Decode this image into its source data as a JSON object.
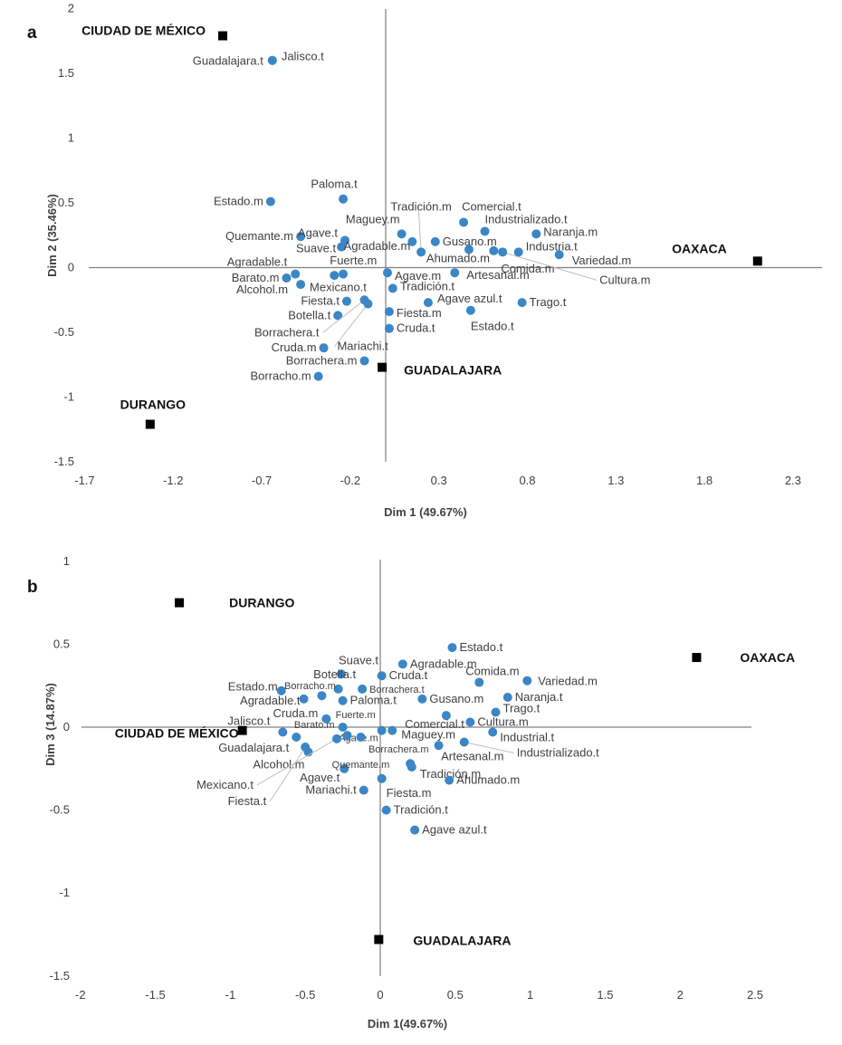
{
  "colors": {
    "attribute_point": "#3b86c6",
    "region_marker": "#000000",
    "axis": "#808080",
    "leader": "#bfbfbf"
  },
  "chart_data": [
    {
      "type": "scatter",
      "panel_label": "a",
      "xlabel": "Dim 1 (49.67%)",
      "ylabel": "Dim 2 (35.46%)",
      "xlim": [
        -1.7,
        2.5
      ],
      "ylim": [
        -1.5,
        2
      ],
      "x_ticks": [
        "-1.7",
        "-1.2",
        "-0.7",
        "-0.2",
        "0.3",
        "0.8",
        "1.3",
        "1.8",
        "2.3"
      ],
      "y_ticks": [
        "2",
        "1.5",
        "1",
        "0.5",
        "0",
        "-0.5",
        "-1",
        "-1.5"
      ],
      "grid": false,
      "points": [
        {
          "label": "Guadalajara.t",
          "x": -0.64,
          "y": 1.6,
          "group": "attribute"
        },
        {
          "label": "Jalisco.t",
          "x": -0.64,
          "y": 1.6,
          "group": "attribute"
        },
        {
          "label": "Estado.m",
          "x": -0.65,
          "y": 0.51,
          "group": "attribute"
        },
        {
          "label": "Paloma.t",
          "x": -0.24,
          "y": 0.53,
          "group": "attribute"
        },
        {
          "label": "Quemante.m",
          "x": -0.48,
          "y": 0.24,
          "group": "attribute"
        },
        {
          "label": "Agave.t",
          "x": -0.23,
          "y": 0.21,
          "group": "attribute"
        },
        {
          "label": "Suave.t",
          "x": -0.25,
          "y": 0.16,
          "group": "attribute"
        },
        {
          "label": "Maguey.m",
          "x": 0.09,
          "y": 0.26,
          "group": "attribute"
        },
        {
          "label": "Agradable.m",
          "x": 0.15,
          "y": 0.2,
          "group": "attribute"
        },
        {
          "label": "Tradición.m",
          "x": 0.2,
          "y": 0.12,
          "group": "attribute"
        },
        {
          "label": "Gusano.m",
          "x": 0.28,
          "y": 0.2,
          "group": "attribute"
        },
        {
          "label": "Comercial.t",
          "x": 0.44,
          "y": 0.35,
          "group": "attribute"
        },
        {
          "label": "Industrializado.t",
          "x": 0.56,
          "y": 0.28,
          "group": "attribute"
        },
        {
          "label": "Naranja.m",
          "x": 0.85,
          "y": 0.26,
          "group": "attribute"
        },
        {
          "label": "Ahumado.m",
          "x": 0.47,
          "y": 0.14,
          "group": "attribute"
        },
        {
          "label": "Comida.m",
          "x": 0.61,
          "y": 0.13,
          "group": "attribute"
        },
        {
          "label": "Cultura.m",
          "x": 0.66,
          "y": 0.12,
          "group": "attribute"
        },
        {
          "label": "Industria.t",
          "x": 0.75,
          "y": 0.12,
          "group": "attribute"
        },
        {
          "label": "Variedad.m",
          "x": 0.98,
          "y": 0.1,
          "group": "attribute"
        },
        {
          "label": "Agave.m",
          "x": 0.01,
          "y": -0.04,
          "group": "attribute"
        },
        {
          "label": "Artesanal.m",
          "x": 0.39,
          "y": -0.04,
          "group": "attribute"
        },
        {
          "label": "Tradición.t",
          "x": 0.04,
          "y": -0.16,
          "group": "attribute"
        },
        {
          "label": "Agave azul.t",
          "x": 0.24,
          "y": -0.27,
          "group": "attribute"
        },
        {
          "label": "Trago.t",
          "x": 0.77,
          "y": -0.27,
          "group": "attribute"
        },
        {
          "label": "Estado.t",
          "x": 0.48,
          "y": -0.33,
          "group": "attribute"
        },
        {
          "label": "Fiesta.m",
          "x": 0.02,
          "y": -0.34,
          "group": "attribute"
        },
        {
          "label": "Cruda.t",
          "x": 0.02,
          "y": -0.47,
          "group": "attribute"
        },
        {
          "label": "Agradable.t",
          "x": -0.51,
          "y": -0.05,
          "group": "attribute"
        },
        {
          "label": "Barato.m",
          "x": -0.56,
          "y": -0.08,
          "group": "attribute"
        },
        {
          "label": "Alcohol.m",
          "x": -0.48,
          "y": -0.13,
          "group": "attribute"
        },
        {
          "label": "Fuerte.m",
          "x": -0.29,
          "y": -0.06,
          "group": "attribute"
        },
        {
          "label": "Mexicano.t",
          "x": -0.24,
          "y": -0.05,
          "group": "attribute"
        },
        {
          "label": "Fiesta.t",
          "x": -0.22,
          "y": -0.26,
          "group": "attribute"
        },
        {
          "label": "Botella.t",
          "x": -0.27,
          "y": -0.37,
          "group": "attribute"
        },
        {
          "label": "Borrachera.t",
          "x": -0.12,
          "y": -0.25,
          "group": "attribute"
        },
        {
          "label": "Mariachi.t",
          "x": -0.1,
          "y": -0.28,
          "group": "attribute"
        },
        {
          "label": "Cruda.m",
          "x": -0.35,
          "y": -0.62,
          "group": "attribute"
        },
        {
          "label": "Borrachera.m",
          "x": -0.12,
          "y": -0.72,
          "group": "attribute"
        },
        {
          "label": "Borracho.m",
          "x": -0.38,
          "y": -0.84,
          "group": "attribute"
        },
        {
          "label": "CIUDAD DE MÉXICO",
          "x": -0.92,
          "y": 1.79,
          "group": "region"
        },
        {
          "label": "OAXACA",
          "x": 2.1,
          "y": 0.05,
          "group": "region"
        },
        {
          "label": "GUADALAJARA",
          "x": -0.02,
          "y": -0.77,
          "group": "region"
        },
        {
          "label": "DURANGO",
          "x": -1.33,
          "y": -1.21,
          "group": "region"
        }
      ]
    },
    {
      "type": "scatter",
      "panel_label": "b",
      "xlabel": "Dim 1(49.67%)",
      "ylabel": "Dim 3 (14.87%)",
      "xlim": [
        -2,
        2.5
      ],
      "ylim": [
        -1.5,
        1
      ],
      "x_ticks": [
        "-2",
        "-1.5",
        "-1",
        "-0.5",
        "0",
        "0.5",
        "1",
        "1.5",
        "2",
        "2.5"
      ],
      "y_ticks": [
        "1",
        "0.5",
        "0",
        "-0.5",
        "-1",
        "-1.5"
      ],
      "grid": false,
      "points": [
        {
          "label": "Estado.t",
          "x": 0.48,
          "y": 0.48,
          "group": "attribute"
        },
        {
          "label": "Agradable.m",
          "x": 0.15,
          "y": 0.38,
          "group": "attribute"
        },
        {
          "label": "Suave.t",
          "x": -0.26,
          "y": 0.32,
          "group": "attribute"
        },
        {
          "label": "Cruda.t",
          "x": 0.01,
          "y": 0.31,
          "group": "attribute"
        },
        {
          "label": "Comida.m",
          "x": 0.66,
          "y": 0.27,
          "group": "attribute"
        },
        {
          "label": "Variedad.m",
          "x": 0.98,
          "y": 0.28,
          "group": "attribute"
        },
        {
          "label": "Borrachera.t",
          "x": -0.12,
          "y": 0.23,
          "group": "attribute"
        },
        {
          "label": "Paloma.t",
          "x": -0.25,
          "y": 0.16,
          "group": "attribute"
        },
        {
          "label": "Gusano.m",
          "x": 0.28,
          "y": 0.17,
          "group": "attribute"
        },
        {
          "label": "Naranja.t",
          "x": 0.85,
          "y": 0.18,
          "group": "attribute"
        },
        {
          "label": "Trago.t",
          "x": 0.77,
          "y": 0.09,
          "group": "attribute"
        },
        {
          "label": "Comercial.t",
          "x": 0.44,
          "y": 0.07,
          "group": "attribute"
        },
        {
          "label": "Cultura.m",
          "x": 0.6,
          "y": 0.03,
          "group": "attribute"
        },
        {
          "label": "Industrial.t",
          "x": 0.75,
          "y": -0.03,
          "group": "attribute"
        },
        {
          "label": "Agave.m",
          "x": 0.01,
          "y": -0.02,
          "group": "attribute"
        },
        {
          "label": "Maguey.m",
          "x": 0.08,
          "y": -0.02,
          "group": "attribute"
        },
        {
          "label": "Industrializado.t",
          "x": 0.56,
          "y": -0.09,
          "group": "attribute"
        },
        {
          "label": "Borrachera.m",
          "x": 0.39,
          "y": -0.11,
          "group": "attribute"
        },
        {
          "label": "Artesanal.m",
          "x": 0.2,
          "y": -0.22,
          "group": "attribute"
        },
        {
          "label": "Tradición.m",
          "x": 0.21,
          "y": -0.24,
          "group": "attribute"
        },
        {
          "label": "Ahumado.m",
          "x": 0.46,
          "y": -0.32,
          "group": "attribute"
        },
        {
          "label": "Fiesta.m",
          "x": 0.01,
          "y": -0.31,
          "group": "attribute"
        },
        {
          "label": "Tradición.t",
          "x": 0.04,
          "y": -0.5,
          "group": "attribute"
        },
        {
          "label": "Agave azul.t",
          "x": 0.23,
          "y": -0.62,
          "group": "attribute"
        },
        {
          "label": "Mariachi.t",
          "x": -0.11,
          "y": -0.38,
          "group": "attribute"
        },
        {
          "label": "Agave.t",
          "x": -0.24,
          "y": -0.25,
          "group": "attribute"
        },
        {
          "label": "Quemante.m",
          "x": -0.13,
          "y": -0.06,
          "group": "attribute"
        },
        {
          "label": "Botella.t",
          "x": -0.28,
          "y": 0.23,
          "group": "attribute"
        },
        {
          "label": "Borracho.m",
          "x": -0.39,
          "y": 0.19,
          "group": "attribute"
        },
        {
          "label": "Estado.m",
          "x": -0.66,
          "y": 0.22,
          "group": "attribute"
        },
        {
          "label": "Agradable.t",
          "x": -0.51,
          "y": 0.17,
          "group": "attribute"
        },
        {
          "label": "Cruda.m",
          "x": -0.36,
          "y": 0.05,
          "group": "attribute"
        },
        {
          "label": "Fuerte.m",
          "x": -0.25,
          "y": 0.0,
          "group": "attribute"
        },
        {
          "label": "Jalisco.t",
          "x": -0.65,
          "y": -0.03,
          "group": "attribute"
        },
        {
          "label": "Barato.m",
          "x": -0.22,
          "y": -0.05,
          "group": "attribute"
        },
        {
          "label": "Guadalajara.t",
          "x": -0.56,
          "y": -0.06,
          "group": "attribute"
        },
        {
          "label": "Alcohol.m",
          "x": -0.48,
          "y": -0.15,
          "group": "attribute"
        },
        {
          "label": "Mexicano.t",
          "x": -0.29,
          "y": -0.07,
          "group": "attribute"
        },
        {
          "label": "Fiesta.t",
          "x": -0.5,
          "y": -0.12,
          "group": "attribute"
        },
        {
          "label": "DURANGO",
          "x": -1.34,
          "y": 0.75,
          "group": "region"
        },
        {
          "label": "OAXACA",
          "x": 2.11,
          "y": 0.42,
          "group": "region"
        },
        {
          "label": "CIUDAD DE MÉXICO",
          "x": -0.92,
          "y": -0.02,
          "group": "region"
        },
        {
          "label": "GUADALAJARA",
          "x": -0.01,
          "y": -1.28,
          "group": "region"
        }
      ]
    }
  ]
}
